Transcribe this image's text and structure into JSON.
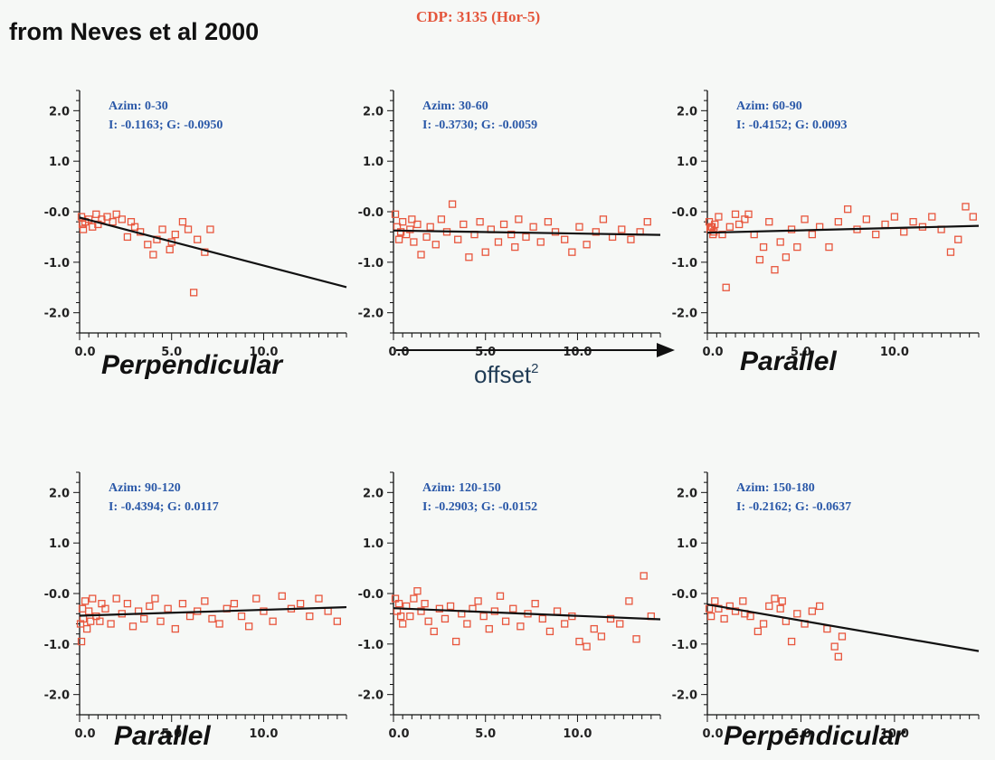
{
  "header": {
    "source": "from Neves et al 2000",
    "cdp": "CDP: 3135 (Hor-5)"
  },
  "colors": {
    "points": "#e8563d",
    "line": "#111111",
    "annotation": "#2a58a8",
    "title": "#e4563c"
  },
  "offset_axis": {
    "label": "offset",
    "superscript": "2"
  },
  "chart_data": [
    {
      "type": "scatter",
      "azim_label": "Azim: 0-30",
      "ig_label": "I: -0.1163;  G: -0.0950",
      "caption": "Perpendicular",
      "intercept": -0.1163,
      "gradient": -0.095,
      "xlim": [
        0,
        14.5
      ],
      "ylim": [
        -2.4,
        2.4
      ],
      "xticks": [
        "0.0",
        "5.0",
        "10.0"
      ],
      "yticks": [
        "2.0",
        "1.0",
        "-0.0",
        "-1.0",
        "-2.0"
      ],
      "points": [
        [
          0.1,
          -0.1
        ],
        [
          0.15,
          -0.25
        ],
        [
          0.2,
          -0.35
        ],
        [
          0.3,
          -0.2
        ],
        [
          0.5,
          -0.15
        ],
        [
          0.7,
          -0.3
        ],
        [
          0.9,
          -0.05
        ],
        [
          1.2,
          -0.15
        ],
        [
          1.5,
          -0.1
        ],
        [
          1.8,
          -0.2
        ],
        [
          2.0,
          -0.05
        ],
        [
          2.3,
          -0.15
        ],
        [
          2.6,
          -0.5
        ],
        [
          3.0,
          -0.3
        ],
        [
          3.3,
          -0.4
        ],
        [
          3.7,
          -0.65
        ],
        [
          4.0,
          -0.85
        ],
        [
          4.2,
          -0.55
        ],
        [
          4.5,
          -0.35
        ],
        [
          4.9,
          -0.75
        ],
        [
          5.2,
          -0.45
        ],
        [
          5.6,
          -0.2
        ],
        [
          5.9,
          -0.35
        ],
        [
          6.2,
          -1.6
        ],
        [
          6.4,
          -0.55
        ],
        [
          6.8,
          -0.8
        ],
        [
          7.1,
          -0.35
        ],
        [
          1.0,
          -0.25
        ],
        [
          2.8,
          -0.2
        ],
        [
          5.0,
          -0.6
        ]
      ]
    },
    {
      "type": "scatter",
      "azim_label": "Azim: 30-60",
      "ig_label": "I: -0.3730;  G: -0.0059",
      "caption": "",
      "intercept": -0.373,
      "gradient": -0.0059,
      "xlim": [
        0,
        14.5
      ],
      "ylim": [
        -2.4,
        2.4
      ],
      "xticks": [
        "0.0",
        "5.0",
        "10.0"
      ],
      "yticks": [
        "2.0",
        "1.0",
        "-0.0",
        "-1.0",
        "-2.0"
      ],
      "points": [
        [
          0.1,
          -0.05
        ],
        [
          0.2,
          -0.3
        ],
        [
          0.3,
          -0.55
        ],
        [
          0.5,
          -0.2
        ],
        [
          0.7,
          -0.45
        ],
        [
          0.9,
          -0.35
        ],
        [
          1.1,
          -0.6
        ],
        [
          1.3,
          -0.25
        ],
        [
          1.5,
          -0.85
        ],
        [
          1.8,
          -0.5
        ],
        [
          2.0,
          -0.3
        ],
        [
          2.3,
          -0.65
        ],
        [
          2.6,
          -0.15
        ],
        [
          2.9,
          -0.4
        ],
        [
          3.2,
          0.15
        ],
        [
          3.5,
          -0.55
        ],
        [
          3.8,
          -0.25
        ],
        [
          4.1,
          -0.9
        ],
        [
          4.4,
          -0.45
        ],
        [
          4.7,
          -0.2
        ],
        [
          5.0,
          -0.8
        ],
        [
          5.3,
          -0.35
        ],
        [
          5.7,
          -0.6
        ],
        [
          6.0,
          -0.25
        ],
        [
          6.4,
          -0.45
        ],
        [
          6.8,
          -0.15
        ],
        [
          7.2,
          -0.5
        ],
        [
          7.6,
          -0.3
        ],
        [
          8.0,
          -0.6
        ],
        [
          8.4,
          -0.2
        ],
        [
          8.8,
          -0.4
        ],
        [
          9.3,
          -0.55
        ],
        [
          9.7,
          -0.8
        ],
        [
          10.1,
          -0.3
        ],
        [
          10.5,
          -0.65
        ],
        [
          11.0,
          -0.4
        ],
        [
          11.4,
          -0.15
        ],
        [
          11.9,
          -0.5
        ],
        [
          12.4,
          -0.35
        ],
        [
          12.9,
          -0.55
        ],
        [
          13.4,
          -0.4
        ],
        [
          13.8,
          -0.2
        ],
        [
          0.4,
          -0.4
        ],
        [
          1.0,
          -0.15
        ],
        [
          6.6,
          -0.7
        ]
      ]
    },
    {
      "type": "scatter",
      "azim_label": "Azim: 60-90",
      "ig_label": "I: -0.4152;  G: 0.0093",
      "caption": "Parallel",
      "intercept": -0.4152,
      "gradient": 0.0093,
      "xlim": [
        0,
        14.5
      ],
      "ylim": [
        -2.4,
        2.4
      ],
      "xticks": [
        "0.0",
        "5.0",
        "10.0"
      ],
      "yticks": [
        "2.0",
        "1.0",
        "-0.0",
        "-1.0",
        "-2.0"
      ],
      "points": [
        [
          0.1,
          -0.2
        ],
        [
          0.15,
          -0.35
        ],
        [
          0.2,
          -0.3
        ],
        [
          0.3,
          -0.45
        ],
        [
          0.4,
          -0.25
        ],
        [
          0.6,
          -0.1
        ],
        [
          0.8,
          -0.45
        ],
        [
          1.0,
          -1.5
        ],
        [
          1.2,
          -0.3
        ],
        [
          1.5,
          -0.05
        ],
        [
          1.7,
          -0.25
        ],
        [
          2.0,
          -0.15
        ],
        [
          2.2,
          -0.05
        ],
        [
          2.5,
          -0.45
        ],
        [
          2.8,
          -0.95
        ],
        [
          3.0,
          -0.7
        ],
        [
          3.3,
          -0.2
        ],
        [
          3.6,
          -1.15
        ],
        [
          3.9,
          -0.6
        ],
        [
          4.2,
          -0.9
        ],
        [
          4.5,
          -0.35
        ],
        [
          4.8,
          -0.7
        ],
        [
          5.2,
          -0.15
        ],
        [
          5.6,
          -0.45
        ],
        [
          6.0,
          -0.3
        ],
        [
          6.5,
          -0.7
        ],
        [
          7.0,
          -0.2
        ],
        [
          7.5,
          0.05
        ],
        [
          8.0,
          -0.35
        ],
        [
          8.5,
          -0.15
        ],
        [
          9.0,
          -0.45
        ],
        [
          9.5,
          -0.25
        ],
        [
          10.0,
          -0.1
        ],
        [
          10.5,
          -0.4
        ],
        [
          11.0,
          -0.2
        ],
        [
          11.5,
          -0.3
        ],
        [
          12.0,
          -0.1
        ],
        [
          12.5,
          -0.35
        ],
        [
          13.0,
          -0.8
        ],
        [
          13.4,
          -0.55
        ],
        [
          13.8,
          0.1
        ],
        [
          14.2,
          -0.1
        ],
        [
          0.25,
          -0.3
        ],
        [
          0.35,
          -0.4
        ]
      ]
    },
    {
      "type": "scatter",
      "azim_label": "Azim: 90-120",
      "ig_label": "I: -0.4394;  G: 0.0117",
      "caption": "Parallel",
      "intercept": -0.4394,
      "gradient": 0.0117,
      "xlim": [
        0,
        14.5
      ],
      "ylim": [
        -2.4,
        2.4
      ],
      "xticks": [
        "0.0",
        "5.0",
        "10.0"
      ],
      "yticks": [
        "2.0",
        "1.0",
        "-0.0",
        "-1.0",
        "-2.0"
      ],
      "points": [
        [
          0.05,
          -0.6
        ],
        [
          0.1,
          -0.95
        ],
        [
          0.15,
          -0.3
        ],
        [
          0.2,
          -0.5
        ],
        [
          0.3,
          -0.15
        ],
        [
          0.4,
          -0.7
        ],
        [
          0.5,
          -0.35
        ],
        [
          0.7,
          -0.1
        ],
        [
          0.9,
          -0.45
        ],
        [
          1.1,
          -0.55
        ],
        [
          1.4,
          -0.3
        ],
        [
          1.7,
          -0.6
        ],
        [
          2.0,
          -0.1
        ],
        [
          2.3,
          -0.4
        ],
        [
          2.6,
          -0.2
        ],
        [
          2.9,
          -0.65
        ],
        [
          3.2,
          -0.35
        ],
        [
          3.5,
          -0.5
        ],
        [
          3.8,
          -0.25
        ],
        [
          4.1,
          -0.1
        ],
        [
          4.4,
          -0.55
        ],
        [
          4.8,
          -0.3
        ],
        [
          5.2,
          -0.7
        ],
        [
          5.6,
          -0.2
        ],
        [
          6.0,
          -0.45
        ],
        [
          6.4,
          -0.35
        ],
        [
          6.8,
          -0.15
        ],
        [
          7.2,
          -0.5
        ],
        [
          7.6,
          -0.6
        ],
        [
          8.0,
          -0.3
        ],
        [
          8.4,
          -0.2
        ],
        [
          8.8,
          -0.45
        ],
        [
          9.2,
          -0.65
        ],
        [
          9.6,
          -0.1
        ],
        [
          10.0,
          -0.35
        ],
        [
          10.5,
          -0.55
        ],
        [
          11.0,
          -0.05
        ],
        [
          11.5,
          -0.3
        ],
        [
          12.0,
          -0.2
        ],
        [
          12.5,
          -0.45
        ],
        [
          13.0,
          -0.1
        ],
        [
          13.5,
          -0.35
        ],
        [
          14.0,
          -0.55
        ],
        [
          0.6,
          -0.55
        ],
        [
          1.2,
          -0.2
        ]
      ]
    },
    {
      "type": "scatter",
      "azim_label": "Azim: 120-150",
      "ig_label": "I: -0.2903;  G: -0.0152",
      "caption": "",
      "intercept": -0.2903,
      "gradient": -0.0152,
      "xlim": [
        0,
        14.5
      ],
      "ylim": [
        -2.4,
        2.4
      ],
      "xticks": [
        "0.0",
        "5.0",
        "10.0"
      ],
      "yticks": [
        "2.0",
        "1.0",
        "-0.0",
        "-1.0",
        "-2.0"
      ],
      "points": [
        [
          0.1,
          -0.1
        ],
        [
          0.2,
          -0.35
        ],
        [
          0.3,
          -0.2
        ],
        [
          0.5,
          -0.6
        ],
        [
          0.7,
          -0.25
        ],
        [
          0.9,
          -0.45
        ],
        [
          1.1,
          -0.1
        ],
        [
          1.3,
          0.05
        ],
        [
          1.5,
          -0.35
        ],
        [
          1.7,
          -0.2
        ],
        [
          1.9,
          -0.55
        ],
        [
          2.2,
          -0.75
        ],
        [
          2.5,
          -0.3
        ],
        [
          2.8,
          -0.5
        ],
        [
          3.1,
          -0.25
        ],
        [
          3.4,
          -0.95
        ],
        [
          3.7,
          -0.4
        ],
        [
          4.0,
          -0.6
        ],
        [
          4.3,
          -0.3
        ],
        [
          4.6,
          -0.15
        ],
        [
          4.9,
          -0.45
        ],
        [
          5.2,
          -0.7
        ],
        [
          5.5,
          -0.35
        ],
        [
          5.8,
          -0.05
        ],
        [
          6.1,
          -0.55
        ],
        [
          6.5,
          -0.3
        ],
        [
          6.9,
          -0.65
        ],
        [
          7.3,
          -0.4
        ],
        [
          7.7,
          -0.2
        ],
        [
          8.1,
          -0.5
        ],
        [
          8.5,
          -0.75
        ],
        [
          8.9,
          -0.35
        ],
        [
          9.3,
          -0.6
        ],
        [
          9.7,
          -0.45
        ],
        [
          10.1,
          -0.95
        ],
        [
          10.5,
          -1.05
        ],
        [
          10.9,
          -0.7
        ],
        [
          11.3,
          -0.85
        ],
        [
          11.8,
          -0.5
        ],
        [
          12.3,
          -0.6
        ],
        [
          12.8,
          -0.15
        ],
        [
          13.2,
          -0.9
        ],
        [
          13.6,
          0.35
        ],
        [
          14.0,
          -0.45
        ],
        [
          0.4,
          -0.45
        ]
      ]
    },
    {
      "type": "scatter",
      "azim_label": "Azim: 150-180",
      "ig_label": "I: -0.2162;  G: -0.0637",
      "caption": "Perpendicular",
      "intercept": -0.2162,
      "gradient": -0.0637,
      "xlim": [
        0,
        14.5
      ],
      "ylim": [
        -2.4,
        2.4
      ],
      "xticks": [
        "0.0",
        "5.0",
        "10.0"
      ],
      "yticks": [
        "2.0",
        "1.0",
        "-0.0",
        "-1.0",
        "-2.0"
      ],
      "points": [
        [
          0.1,
          -0.3
        ],
        [
          0.2,
          -0.45
        ],
        [
          0.4,
          -0.15
        ],
        [
          0.6,
          -0.3
        ],
        [
          0.9,
          -0.5
        ],
        [
          1.2,
          -0.25
        ],
        [
          1.5,
          -0.35
        ],
        [
          1.9,
          -0.15
        ],
        [
          2.3,
          -0.45
        ],
        [
          2.7,
          -0.75
        ],
        [
          3.0,
          -0.6
        ],
        [
          3.3,
          -0.25
        ],
        [
          3.6,
          -0.1
        ],
        [
          3.9,
          -0.3
        ],
        [
          4.2,
          -0.55
        ],
        [
          4.5,
          -0.95
        ],
        [
          4.8,
          -0.4
        ],
        [
          5.2,
          -0.6
        ],
        [
          5.6,
          -0.35
        ],
        [
          6.0,
          -0.25
        ],
        [
          6.4,
          -0.7
        ],
        [
          6.8,
          -1.05
        ],
        [
          7.0,
          -1.25
        ],
        [
          7.2,
          -0.85
        ],
        [
          2.0,
          -0.4
        ],
        [
          4.0,
          -0.15
        ]
      ]
    }
  ]
}
